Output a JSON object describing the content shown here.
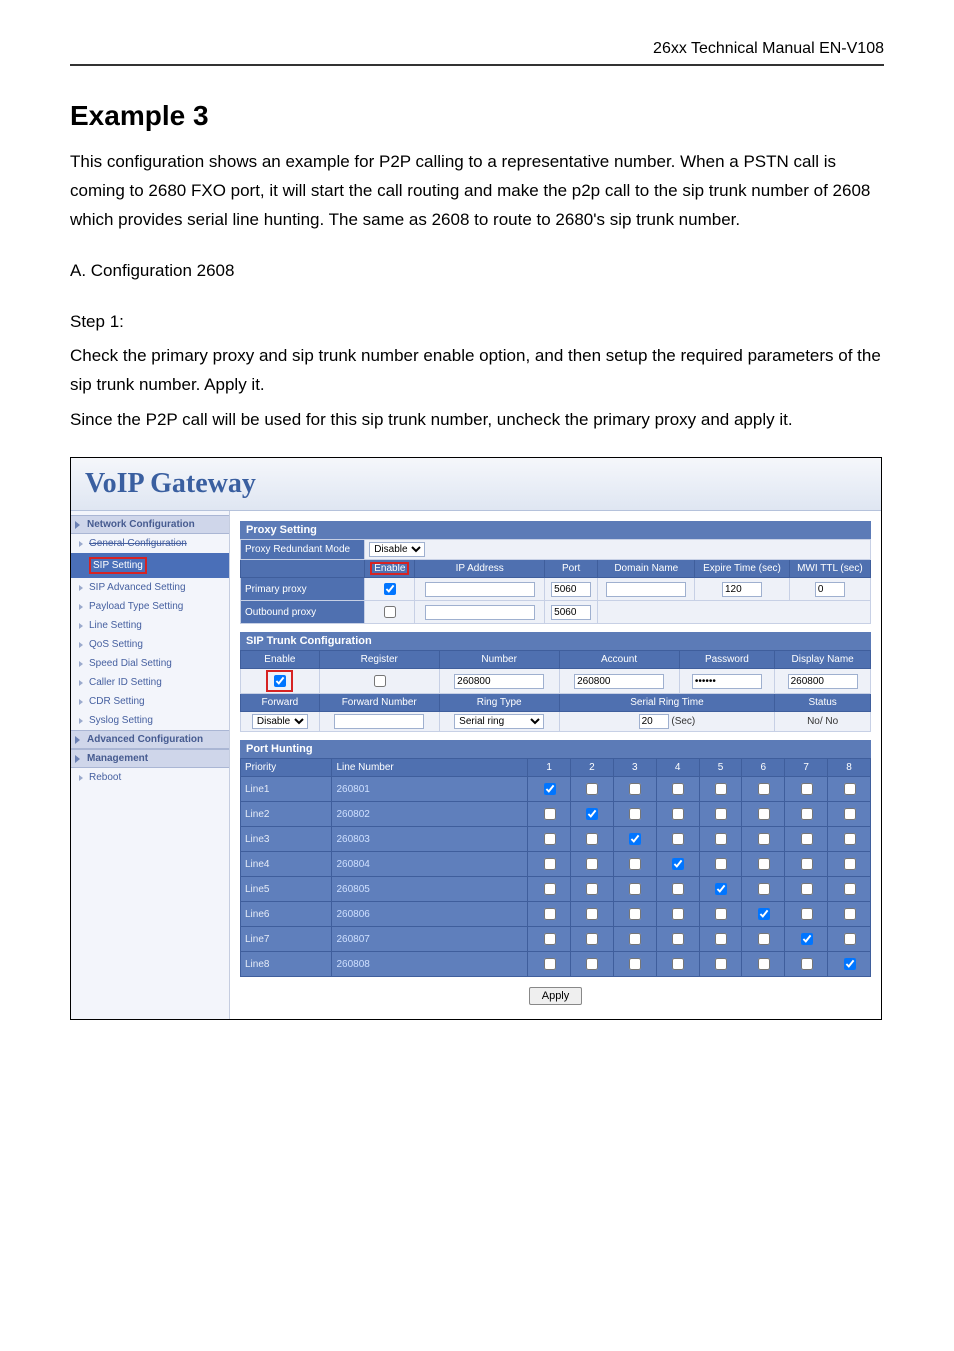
{
  "header_right": "26xx Technical Manual EN-V108",
  "title": "Example 3",
  "para1": "This configuration shows an example for P2P calling to a representative number. When a PSTN call is coming to 2680 FXO port, it will start the call routing and make the p2p call to the sip trunk number of 2608 which provides serial line hunting. The same as 2608 to route to 2680's sip trunk number.",
  "lineA": "A. Configuration 2608",
  "step1": "Step 1:",
  "step1_a": "Check the primary proxy and sip trunk number enable option, and then setup the required parameters of the sip trunk number. Apply it.",
  "step1_b": "Since the P2P call will be used for this sip trunk number, uncheck the primary proxy and apply it.",
  "shot": {
    "voip_title": "VoIP  Gateway",
    "sidebar": {
      "cats": [
        "Network Configuration",
        "Advanced Configuration",
        "Management"
      ],
      "items": [
        "General Configuration",
        "SIP Setting",
        "SIP Advanced Setting",
        "Payload Type Setting",
        "Line Setting",
        "QoS Setting",
        "Speed Dial Setting",
        "Caller ID Setting",
        "CDR Setting",
        "Syslog Setting"
      ],
      "reboot": "Reboot"
    },
    "proxy": {
      "section": "Proxy Setting",
      "redundant_label": "Proxy Redundant Mode",
      "redundant_value": "Disable",
      "cols": [
        "Enable",
        "IP Address",
        "Port",
        "Domain Name",
        "Expire Time (sec)",
        "MWI TTL (sec)"
      ],
      "primary_label": "Primary proxy",
      "primary_port": "5060",
      "primary_expire": "120",
      "primary_mwi": "0",
      "outbound_label": "Outbound proxy",
      "outbound_port": "5060"
    },
    "siptrunk": {
      "section": "SIP Trunk Configuration",
      "row1_cols": [
        "Enable",
        "Register",
        "Number",
        "Account",
        "Password",
        "Display Name"
      ],
      "number": "260800",
      "account": "260800",
      "password": "••••••",
      "display": "260800",
      "row2_cols": [
        "Forward",
        "Forward Number",
        "Ring Type",
        "Serial Ring Time",
        "Status"
      ],
      "forward_value": "Disable",
      "ring_type": "Serial ring",
      "serial_time": "20",
      "serial_unit": "(Sec)",
      "status": "No/ No"
    },
    "port": {
      "section": "Port Hunting",
      "priority_label": "Priority",
      "linenum_label": "Line Number",
      "cols": [
        "1",
        "2",
        "3",
        "4",
        "5",
        "6",
        "7",
        "8"
      ],
      "rows": [
        {
          "name": "Line1",
          "num": "260801",
          "checked": 0
        },
        {
          "name": "Line2",
          "num": "260802",
          "checked": 1
        },
        {
          "name": "Line3",
          "num": "260803",
          "checked": 2
        },
        {
          "name": "Line4",
          "num": "260804",
          "checked": 3
        },
        {
          "name": "Line5",
          "num": "260805",
          "checked": 4
        },
        {
          "name": "Line6",
          "num": "260806",
          "checked": 5
        },
        {
          "name": "Line7",
          "num": "260807",
          "checked": 6
        },
        {
          "name": "Line8",
          "num": "260808",
          "checked": 7
        }
      ]
    },
    "apply": "Apply"
  }
}
